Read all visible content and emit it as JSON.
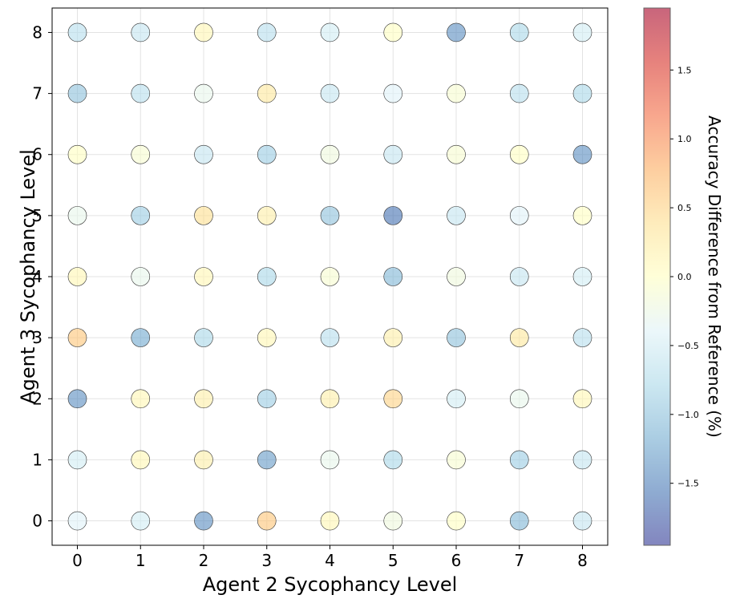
{
  "chart_data": {
    "type": "scatter",
    "xlabel": "Agent 2 Sycophancy Level",
    "ylabel": "Agent 3 Sycophancy Level",
    "x_ticks": [
      "0",
      "1",
      "2",
      "3",
      "4",
      "5",
      "6",
      "7",
      "8"
    ],
    "y_ticks": [
      "0",
      "1",
      "2",
      "3",
      "4",
      "5",
      "6",
      "7",
      "8"
    ],
    "xlim": [
      -0.4,
      8.4
    ],
    "ylim": [
      -0.4,
      8.4
    ],
    "grid": true,
    "colorbar": {
      "label": "Accuracy Difference from Reference (%)",
      "colormap": "RdYlBu_r",
      "range": [
        -1.95,
        1.95
      ],
      "ticks": [
        "1.5",
        "1.0",
        "0.5",
        "0.0",
        "−0.5",
        "−1.0",
        "−1.5"
      ],
      "tick_values": [
        1.5,
        1.0,
        0.5,
        0.0,
        -0.5,
        -1.0,
        -1.5
      ]
    },
    "points_rows_by_y": [
      {
        "y": 0,
        "values": [
          -0.4,
          -0.5,
          -1.4,
          0.6,
          0.1,
          -0.2,
          0.0,
          -1.1,
          -0.6
        ]
      },
      {
        "y": 1,
        "values": [
          -0.5,
          0.1,
          0.2,
          -1.3,
          -0.3,
          -0.8,
          -0.1,
          -0.9,
          -0.6
        ]
      },
      {
        "y": 2,
        "values": [
          -1.4,
          0.1,
          0.2,
          -0.9,
          0.2,
          0.5,
          -0.5,
          -0.3,
          0.1
        ]
      },
      {
        "y": 3,
        "values": [
          0.6,
          -1.2,
          -0.8,
          0.1,
          -0.7,
          0.2,
          -1.0,
          0.3,
          -0.7
        ]
      },
      {
        "y": 4,
        "values": [
          0.1,
          -0.3,
          0.1,
          -0.8,
          -0.1,
          -1.1,
          -0.2,
          -0.6,
          -0.5
        ]
      },
      {
        "y": 5,
        "values": [
          -0.3,
          -0.9,
          0.4,
          0.2,
          -1.0,
          -1.6,
          -0.6,
          -0.4,
          0.0
        ]
      },
      {
        "y": 6,
        "values": [
          0.0,
          -0.1,
          -0.6,
          -0.9,
          -0.2,
          -0.6,
          -0.1,
          0.0,
          -1.4
        ]
      },
      {
        "y": 7,
        "values": [
          -1.0,
          -0.7,
          -0.3,
          0.3,
          -0.6,
          -0.4,
          -0.1,
          -0.7,
          -0.8
        ]
      },
      {
        "y": 8,
        "values": [
          -0.7,
          -0.6,
          0.1,
          -0.7,
          -0.5,
          0.0,
          -1.4,
          -0.8,
          -0.5
        ]
      }
    ]
  }
}
